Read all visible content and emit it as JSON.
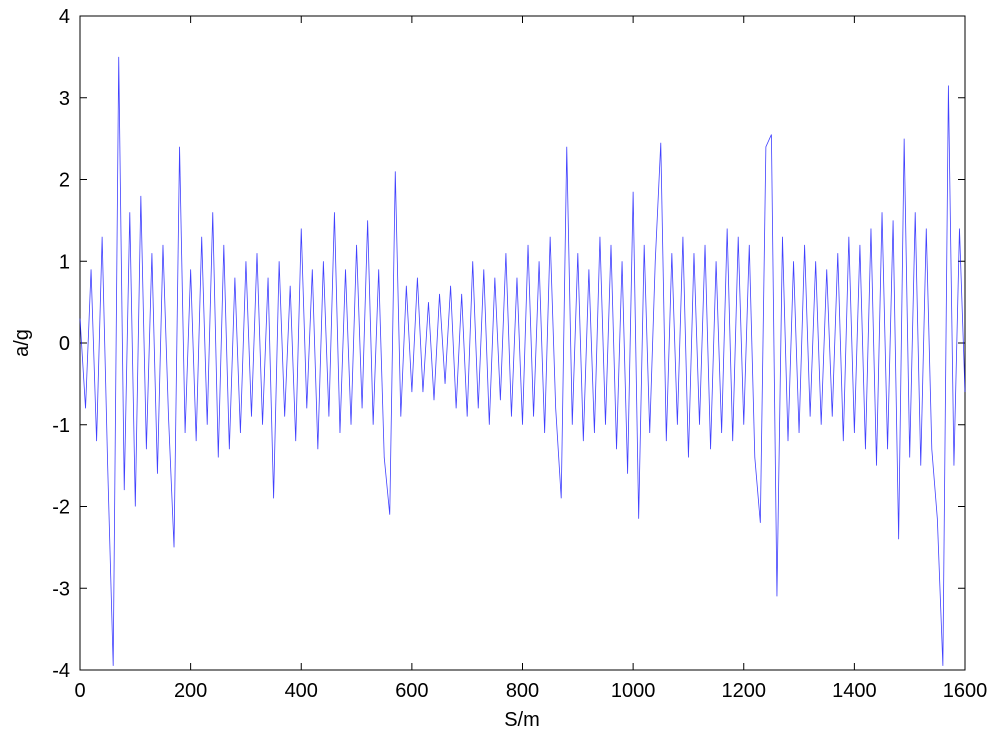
{
  "chart_data": {
    "type": "line",
    "xlabel": "S/m",
    "ylabel": "a/g",
    "x": [
      0,
      10,
      20,
      30,
      40,
      50,
      60,
      70,
      80,
      90,
      100,
      110,
      120,
      130,
      140,
      150,
      160,
      170,
      180,
      190,
      200,
      210,
      220,
      230,
      240,
      250,
      260,
      270,
      280,
      290,
      300,
      310,
      320,
      330,
      340,
      350,
      360,
      370,
      380,
      390,
      400,
      410,
      420,
      430,
      440,
      450,
      460,
      470,
      480,
      490,
      500,
      510,
      520,
      530,
      540,
      550,
      560,
      570,
      580,
      590,
      600,
      610,
      620,
      630,
      640,
      650,
      660,
      670,
      680,
      690,
      700,
      710,
      720,
      730,
      740,
      750,
      760,
      770,
      780,
      790,
      800,
      810,
      820,
      830,
      840,
      850,
      860,
      870,
      880,
      890,
      900,
      910,
      920,
      930,
      940,
      950,
      960,
      970,
      980,
      990,
      1000,
      1010,
      1020,
      1030,
      1040,
      1050,
      1060,
      1070,
      1080,
      1090,
      1100,
      1110,
      1120,
      1130,
      1140,
      1150,
      1160,
      1170,
      1180,
      1190,
      1200,
      1210,
      1220,
      1230,
      1240,
      1250,
      1260,
      1270,
      1280,
      1290,
      1300,
      1310,
      1320,
      1330,
      1340,
      1350,
      1360,
      1370,
      1380,
      1390,
      1400,
      1410,
      1420,
      1430,
      1440,
      1450,
      1460,
      1470,
      1480,
      1490,
      1500,
      1510,
      1520,
      1530,
      1540,
      1550,
      1560,
      1570,
      1580,
      1590,
      1600
    ],
    "series": [
      {
        "color": "#0000ff",
        "values": [
          0.3,
          -0.8,
          0.9,
          -1.2,
          1.3,
          -1.5,
          -3.95,
          3.5,
          -1.8,
          1.6,
          -2.0,
          1.8,
          -1.3,
          1.1,
          -1.6,
          1.2,
          -0.9,
          -2.5,
          2.4,
          -1.1,
          0.9,
          -1.2,
          1.3,
          -1.0,
          1.6,
          -1.4,
          1.2,
          -1.3,
          0.8,
          -1.1,
          1.0,
          -0.9,
          1.1,
          -1.0,
          0.8,
          -1.9,
          1.0,
          -0.9,
          0.7,
          -1.2,
          1.4,
          -0.8,
          0.9,
          -1.3,
          1.0,
          -0.9,
          1.6,
          -1.1,
          0.9,
          -1.0,
          1.2,
          -0.8,
          1.5,
          -1.0,
          0.9,
          -1.4,
          -2.1,
          2.1,
          -0.9,
          0.7,
          -0.6,
          0.8,
          -0.6,
          0.5,
          -0.7,
          0.6,
          -0.5,
          0.7,
          -0.8,
          0.6,
          -0.9,
          1.0,
          -0.8,
          0.9,
          -1.0,
          0.8,
          -0.7,
          1.1,
          -0.9,
          0.8,
          -1.0,
          1.2,
          -0.9,
          1.0,
          -1.1,
          1.3,
          -0.8,
          -1.9,
          2.4,
          -1.0,
          1.1,
          -1.2,
          0.9,
          -1.1,
          1.3,
          -1.0,
          1.2,
          -1.3,
          1.0,
          -1.6,
          1.85,
          -2.15,
          1.2,
          -1.1,
          1.0,
          2.45,
          -1.2,
          1.1,
          -1.0,
          1.3,
          -1.4,
          1.1,
          -1.0,
          1.2,
          -1.3,
          1.0,
          -1.1,
          1.4,
          -1.2,
          1.3,
          -1.0,
          1.2,
          -1.4,
          -2.2,
          2.4,
          2.55,
          -3.1,
          1.3,
          -1.2,
          1.0,
          -1.1,
          1.2,
          -0.9,
          1.0,
          -1.0,
          0.9,
          -0.9,
          1.1,
          -1.2,
          1.3,
          -1.1,
          1.2,
          -1.3,
          1.4,
          -1.5,
          1.6,
          -1.3,
          1.5,
          -2.4,
          2.5,
          -1.4,
          1.6,
          -1.5,
          1.4,
          -1.3,
          -2.15,
          -3.95,
          3.15,
          -1.5,
          1.4,
          -0.6
        ]
      }
    ],
    "xlim": [
      0,
      1600
    ],
    "xticks": [
      0,
      200,
      400,
      600,
      800,
      1000,
      1200,
      1400,
      1600
    ],
    "ylim": [
      -4,
      4
    ],
    "yticks": [
      -4,
      -3,
      -2,
      -1,
      0,
      1,
      2,
      3,
      4
    ],
    "grid": false
  }
}
